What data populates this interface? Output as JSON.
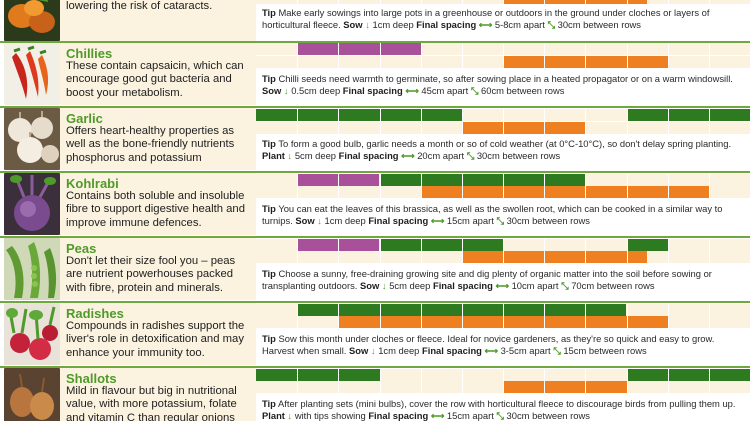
{
  "colors": {
    "sow": "#a8509a",
    "plant": "#2d7a20",
    "harvest": "#ee8021",
    "heading": "#4f9a2a",
    "panel": "#fbf3df",
    "divider": "#6fa83c"
  },
  "legend_icons": {
    "sow_depth": "arrow-down-icon",
    "spacing": "double-arrow-icon",
    "rows": "diagonal-arrows-icon"
  },
  "crops": [
    {
      "id": "carrots",
      "name": "",
      "desc": "A good source of carotenoids, which protect the retina from UV light, lowering the risk of cataracts.",
      "tip": {
        "tip_label": "Tip",
        "text": "Make early sowings into large pots in a greenhouse or outdoors in the ground under cloches or layers of horticultural fleece.",
        "action_label": "Sow",
        "depth": "1cm deep",
        "spacing_label": "Final spacing",
        "spacing": "5-8cm apart",
        "rows": "30cm between rows"
      }
    },
    {
      "id": "chillies",
      "name": "Chillies",
      "desc": "These contain capsaicin, which can encourage good gut bacteria and boost your metabolism.",
      "tip": {
        "tip_label": "Tip",
        "text": "Chilli seeds need warmth to germinate, so after sowing place in a heated propagator or on a warm windowsill.",
        "action_label": "Sow",
        "depth": "0.5cm deep",
        "spacing_label": "Final spacing",
        "spacing": "45cm apart",
        "rows": "60cm between rows"
      }
    },
    {
      "id": "garlic",
      "name": "Garlic",
      "desc": "Offers heart-healthy properties as well as the bone-friendly nutrients phosphorus and potassium",
      "tip": {
        "tip_label": "Tip",
        "text": "To form a good bulb, garlic needs a month or so of cold weather (at 0°C-10°C), so don't delay spring planting.",
        "action_label": "Plant",
        "depth": "5cm deep",
        "spacing_label": "Final spacing",
        "spacing": "20cm apart",
        "rows": "30cm between rows"
      }
    },
    {
      "id": "kohlrabi",
      "name": "Kohlrabi",
      "desc": "Contains both soluble and insoluble fibre to support digestive health and improve immune defences.",
      "tip": {
        "tip_label": "Tip",
        "text": "You can eat the leaves of this brassica, as well as the swollen root, which can be cooked in a similar way to turnips.",
        "action_label": "Sow",
        "depth": "1cm deep",
        "spacing_label": "Final spacing",
        "spacing": "15cm apart",
        "rows": "30cm between rows"
      }
    },
    {
      "id": "peas",
      "name": "Peas",
      "desc": "Don't let their size fool you – peas are nutrient powerhouses packed with fibre, protein and minerals.",
      "tip": {
        "tip_label": "Tip",
        "text": "Choose a sunny, free-draining growing site and dig plenty of organic matter into the soil before sowing or transplanting outdoors.",
        "action_label": "Sow",
        "depth": "5cm deep",
        "spacing_label": "Final spacing",
        "spacing": "10cm apart",
        "rows": "70cm between rows"
      }
    },
    {
      "id": "radishes",
      "name": "Radishes",
      "desc": "Compounds in radishes support the liver's role in detoxification and may enhance your immunity too.",
      "tip": {
        "tip_label": "Tip",
        "text": "Sow this month under cloches or fleece. Ideal for novice gardeners, as they're so quick and easy to grow. Harvest when small.",
        "action_label": "Sow",
        "depth": "1cm deep",
        "spacing_label": "Final spacing",
        "spacing": "3-5cm apart",
        "rows": "15cm between rows"
      }
    },
    {
      "id": "shallots",
      "name": "Shallots",
      "desc": "Mild in flavour but big in nutritional value, with more potassium, folate and vitamin C than regular onions",
      "tip": {
        "tip_label": "Tip",
        "text": "After planting sets (mini bulbs), cover the row with horticultural fleece to discourage birds from pulling them up.",
        "action_label": "Plant",
        "depth": "with tips showing",
        "spacing_label": "Final spacing",
        "spacing": "15cm apart",
        "rows": "30cm between rows"
      }
    }
  ],
  "schedule": [
    {
      "crop": "carrots",
      "rows": [
        [],
        [
          [
            "harvest",
            6,
            9.5
          ]
        ]
      ]
    },
    {
      "crop": "chillies",
      "rows": [
        [
          [
            "sow",
            1,
            4
          ]
        ],
        [
          [
            "harvest",
            6,
            10
          ]
        ]
      ]
    },
    {
      "crop": "garlic",
      "rows": [
        [
          [
            "plant",
            0,
            5
          ],
          [
            "plant",
            9,
            12
          ]
        ],
        [
          [
            "harvest",
            5,
            8
          ]
        ]
      ]
    },
    {
      "crop": "kohlrabi",
      "rows": [
        [
          [
            "sow",
            1,
            3
          ],
          [
            "plant",
            3,
            8
          ]
        ],
        [
          [
            "harvest",
            4,
            11
          ]
        ]
      ]
    },
    {
      "crop": "peas",
      "rows": [
        [
          [
            "sow",
            1,
            3
          ],
          [
            "plant",
            3,
            6
          ],
          [
            "plant",
            9,
            10
          ]
        ],
        [
          [
            "harvest",
            5,
            9.5
          ]
        ]
      ]
    },
    {
      "crop": "radishes",
      "rows": [
        [
          [
            "plant",
            1,
            9
          ]
        ],
        [
          [
            "harvest",
            2,
            10
          ]
        ]
      ]
    },
    {
      "crop": "shallots",
      "rows": [
        [
          [
            "plant",
            0,
            3
          ],
          [
            "plant",
            9,
            12
          ]
        ],
        [
          [
            "harvest",
            6,
            9
          ]
        ]
      ]
    }
  ]
}
